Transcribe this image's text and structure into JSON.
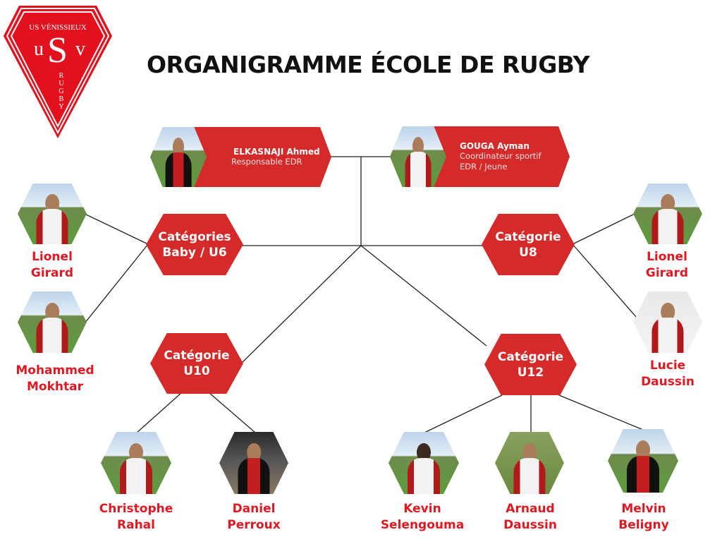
{
  "logo": {
    "text_top": "US VÉNISSIEUX",
    "letters": "uSv",
    "text_side": "RUGBY",
    "color": "#e3101e"
  },
  "title": "ORGANIGRAMME ÉCOLE DE RUGBY",
  "leaders": [
    {
      "name": "ELKASNAJI Ahmed",
      "role": "Responsable EDR"
    },
    {
      "name": "GOUGA Ayman",
      "role": "Coordinateur sportif EDR / Jeune"
    }
  ],
  "categories": {
    "baby": {
      "line1": "Catégories",
      "line2": "Baby / U6"
    },
    "u8": {
      "line1": "Catégorie",
      "line2": "U8"
    },
    "u10": {
      "line1": "Catégorie",
      "line2": "U10"
    },
    "u12": {
      "line1": "Catégorie",
      "line2": "U12"
    }
  },
  "coaches": {
    "lionel_left": {
      "first": "Lionel",
      "last": "Girard"
    },
    "mohammed": {
      "first": "Mohammed",
      "last": "Mokhtar"
    },
    "lionel_right": {
      "first": "Lionel",
      "last": "Girard"
    },
    "lucie": {
      "first": "Lucie",
      "last": "Daussin"
    },
    "christophe": {
      "first": "Christophe",
      "last": "Rahal"
    },
    "daniel": {
      "first": "Daniel",
      "last": "Perroux"
    },
    "kevin": {
      "first": "Kevin",
      "last": "Selengouma"
    },
    "arnaud": {
      "first": "Arnaud",
      "last": "Daussin"
    },
    "melvin": {
      "first": "Melvin",
      "last": "Beligny"
    }
  },
  "colors": {
    "accent": "#d42a2a",
    "name_text": "#e01822"
  }
}
